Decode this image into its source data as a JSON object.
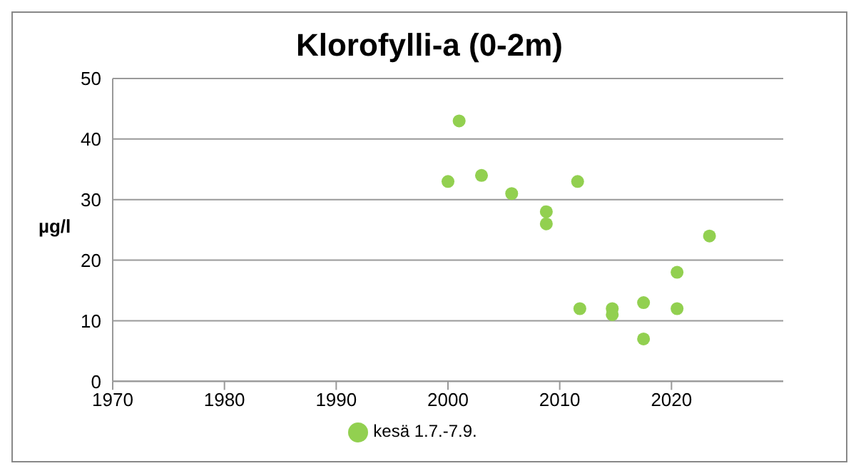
{
  "chart_data": {
    "type": "scatter",
    "title": "Klorofylli-a (0-2m)",
    "ylabel": "µg/l",
    "x": [
      2000,
      2001,
      2003,
      2005.7,
      2008.8,
      2008.8,
      2011.6,
      2011.8,
      2014.7,
      2014.7,
      2017.5,
      2017.5,
      2020.5,
      2020.5,
      2023.4
    ],
    "series": [
      {
        "name": "kesä 1.7.-7.9.",
        "color": "#92d050",
        "values": [
          33,
          43,
          34,
          31,
          28,
          26,
          33,
          12,
          12,
          11,
          13,
          7,
          18,
          12,
          24
        ]
      }
    ],
    "xlim": [
      1970,
      2030
    ],
    "xticks": [
      1970,
      1980,
      1990,
      2000,
      2010,
      2020
    ],
    "ylim": [
      0,
      50
    ],
    "yticks": [
      0,
      10,
      20,
      30,
      40,
      50
    ],
    "grid": "y",
    "legend": "bottom",
    "marker": "circle"
  }
}
